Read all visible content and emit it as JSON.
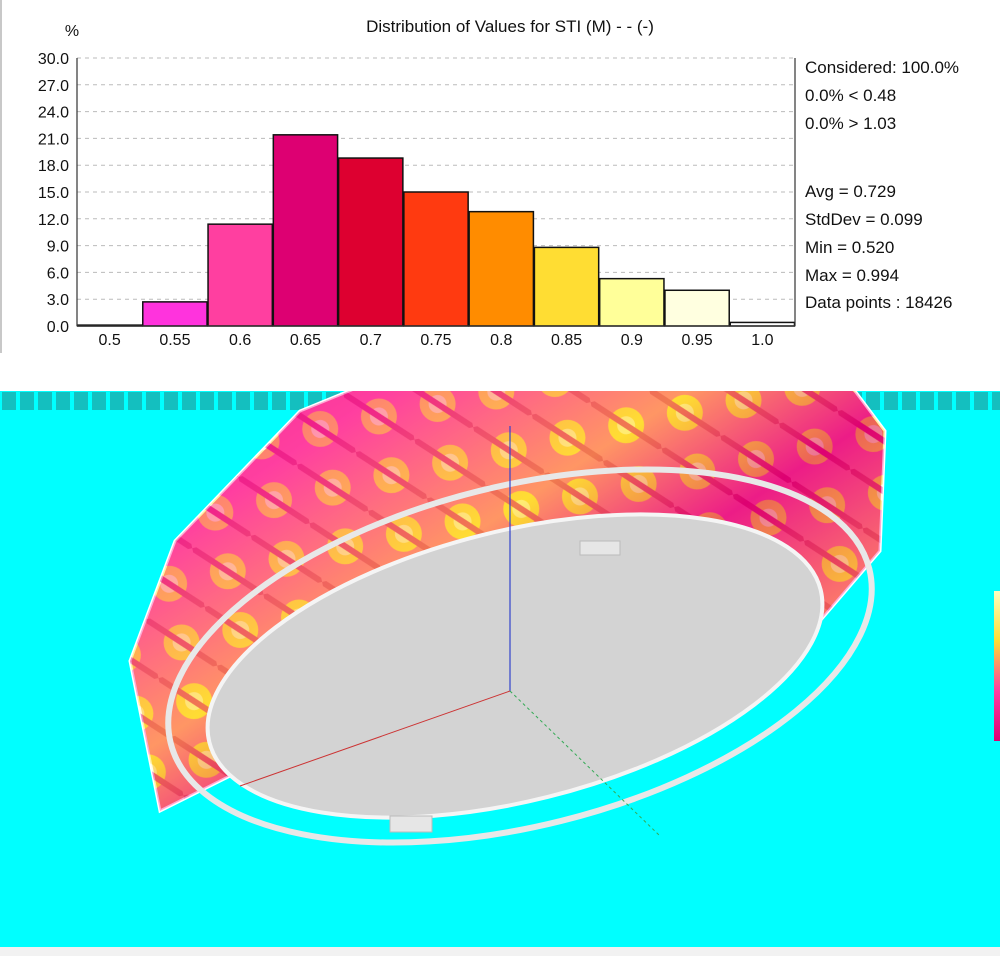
{
  "chart_data": {
    "type": "bar",
    "title": "Distribution of Values for STI (M)  - - (-)",
    "ylabel": "%",
    "xlabel": "",
    "ylim": [
      0,
      30
    ],
    "yticks": [
      "0.0",
      "3.0",
      "6.0",
      "9.0",
      "12.0",
      "15.0",
      "18.0",
      "21.0",
      "24.0",
      "27.0",
      "30.0"
    ],
    "categories": [
      "0.5",
      "0.55",
      "0.6",
      "0.65",
      "0.7",
      "0.75",
      "0.8",
      "0.85",
      "0.9",
      "0.95",
      "1.0"
    ],
    "values": [
      0.1,
      2.7,
      11.4,
      21.4,
      18.8,
      15.0,
      12.8,
      8.8,
      5.3,
      4.0,
      0.4
    ],
    "bar_colors": [
      "#ffffff",
      "#ff33dd",
      "#ff3fa0",
      "#dd0072",
      "#dd0030",
      "#ff3a10",
      "#ff8c00",
      "#ffdd33",
      "#ffff99",
      "#ffffe0",
      "#ffffff"
    ],
    "grid": "dashed-horizontal",
    "stats": {
      "considered": "Considered: 100.0%",
      "below": "0.0%  < 0.48",
      "above": "0.0%  > 1.03",
      "avg": "Avg = 0.729",
      "stddev": "StdDev = 0.099",
      "min": "Min = 0.520",
      "max": "Max = 0.994",
      "points": "Data points : 18426"
    }
  },
  "viewport": {
    "background": "#00ffff",
    "floor_color": "#d3d3d3",
    "heatmap_colors": [
      "#dd0072",
      "#ff3fa0",
      "#ffdd33",
      "#ffffc0"
    ]
  }
}
